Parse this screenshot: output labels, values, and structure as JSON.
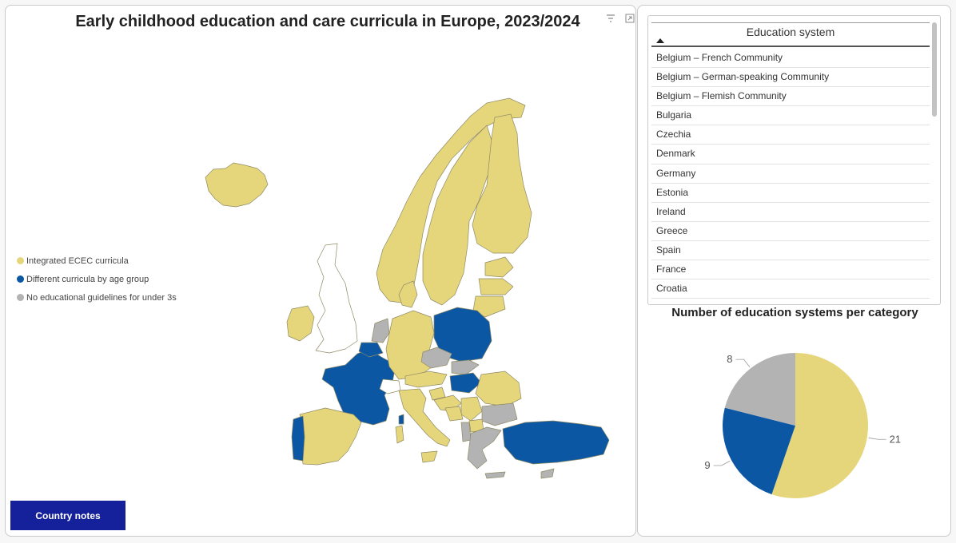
{
  "map": {
    "title": "Early childhood education and care curricula in Europe, 2023/2024",
    "legend": [
      {
        "label": "Integrated ECEC curricula",
        "color": "#e6d67b"
      },
      {
        "label": "Different curricula by age group",
        "color": "#0b57a4"
      },
      {
        "label": "No educational guidelines for under 3s",
        "color": "#b3b3b3"
      }
    ],
    "button_label": "Country notes",
    "button_color": "#15219a",
    "icons": [
      "filter-icon",
      "expand-icon"
    ]
  },
  "table": {
    "header": "Education system",
    "sort": "ascending",
    "rows": [
      "Belgium – French Community",
      "Belgium – German-speaking Community",
      "Belgium – Flemish Community",
      "Bulgaria",
      "Czechia",
      "Denmark",
      "Germany",
      "Estonia",
      "Ireland",
      "Greece",
      "Spain",
      "France",
      "Croatia"
    ]
  },
  "pie": {
    "title": "Number of education systems per category"
  },
  "chart_data": {
    "type": "pie",
    "title": "Number of education systems per category",
    "slices": [
      {
        "category": "Integrated ECEC curricula",
        "value": 21,
        "color": "#e6d67b"
      },
      {
        "category": "Different curricula by age group",
        "value": 9,
        "color": "#0b57a4"
      },
      {
        "category": "No educational guidelines for under 3s",
        "value": 8,
        "color": "#b3b3b3"
      }
    ]
  }
}
